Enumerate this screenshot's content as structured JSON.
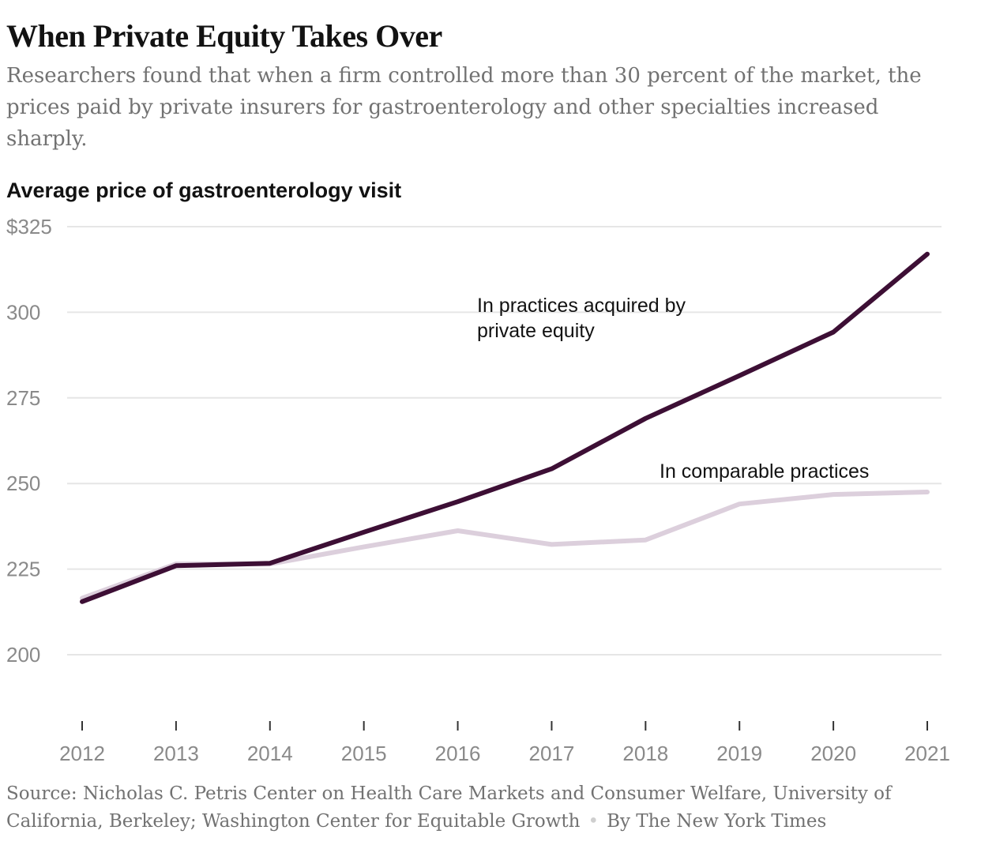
{
  "headline": "When Private Equity Takes Over",
  "subhead": "Researchers found that when a firm controlled more than 30 percent of the market, the prices paid by private insurers for gastroenterology and other specialties increased sharply.",
  "footer": {
    "source": "Source: Nicholas C. Petris Center on Health Care Markets and Consumer Welfare, University of California, Berkeley; Washington Center for Equitable Growth",
    "separator": "•",
    "credit": "By The New York Times"
  },
  "chart_data": {
    "type": "line",
    "title": "Average price of gastroenterology visit",
    "xlabel": "",
    "ylabel": "",
    "x": [
      2012,
      2013,
      2014,
      2015,
      2016,
      2017,
      2018,
      2019,
      2020,
      2021
    ],
    "x_tick_labels": [
      "2012",
      "2013",
      "2014",
      "2015",
      "2016",
      "2017",
      "2018",
      "2019",
      "2020",
      "2021"
    ],
    "y_ticks": [
      200,
      225,
      250,
      275,
      300,
      325
    ],
    "y_tick_labels": [
      "200",
      "225",
      "250",
      "275",
      "300",
      "$325"
    ],
    "ylim": [
      183,
      325
    ],
    "grid": true,
    "series": [
      {
        "name": "In comparable practices",
        "label_lines": [
          "In comparable practices"
        ],
        "color": "#dccfdc",
        "values": [
          216.5,
          226.5,
          226.5,
          231.5,
          236.2,
          232.2,
          233.5,
          244,
          246.8,
          247.5
        ]
      },
      {
        "name": "In practices acquired by private equity",
        "label_lines": [
          "In practices acquired by",
          "private equity"
        ],
        "color": "#3d0f35",
        "values": [
          215.5,
          226,
          226.7,
          235.8,
          244.7,
          254.3,
          269,
          281.5,
          294.2,
          317
        ]
      }
    ]
  }
}
